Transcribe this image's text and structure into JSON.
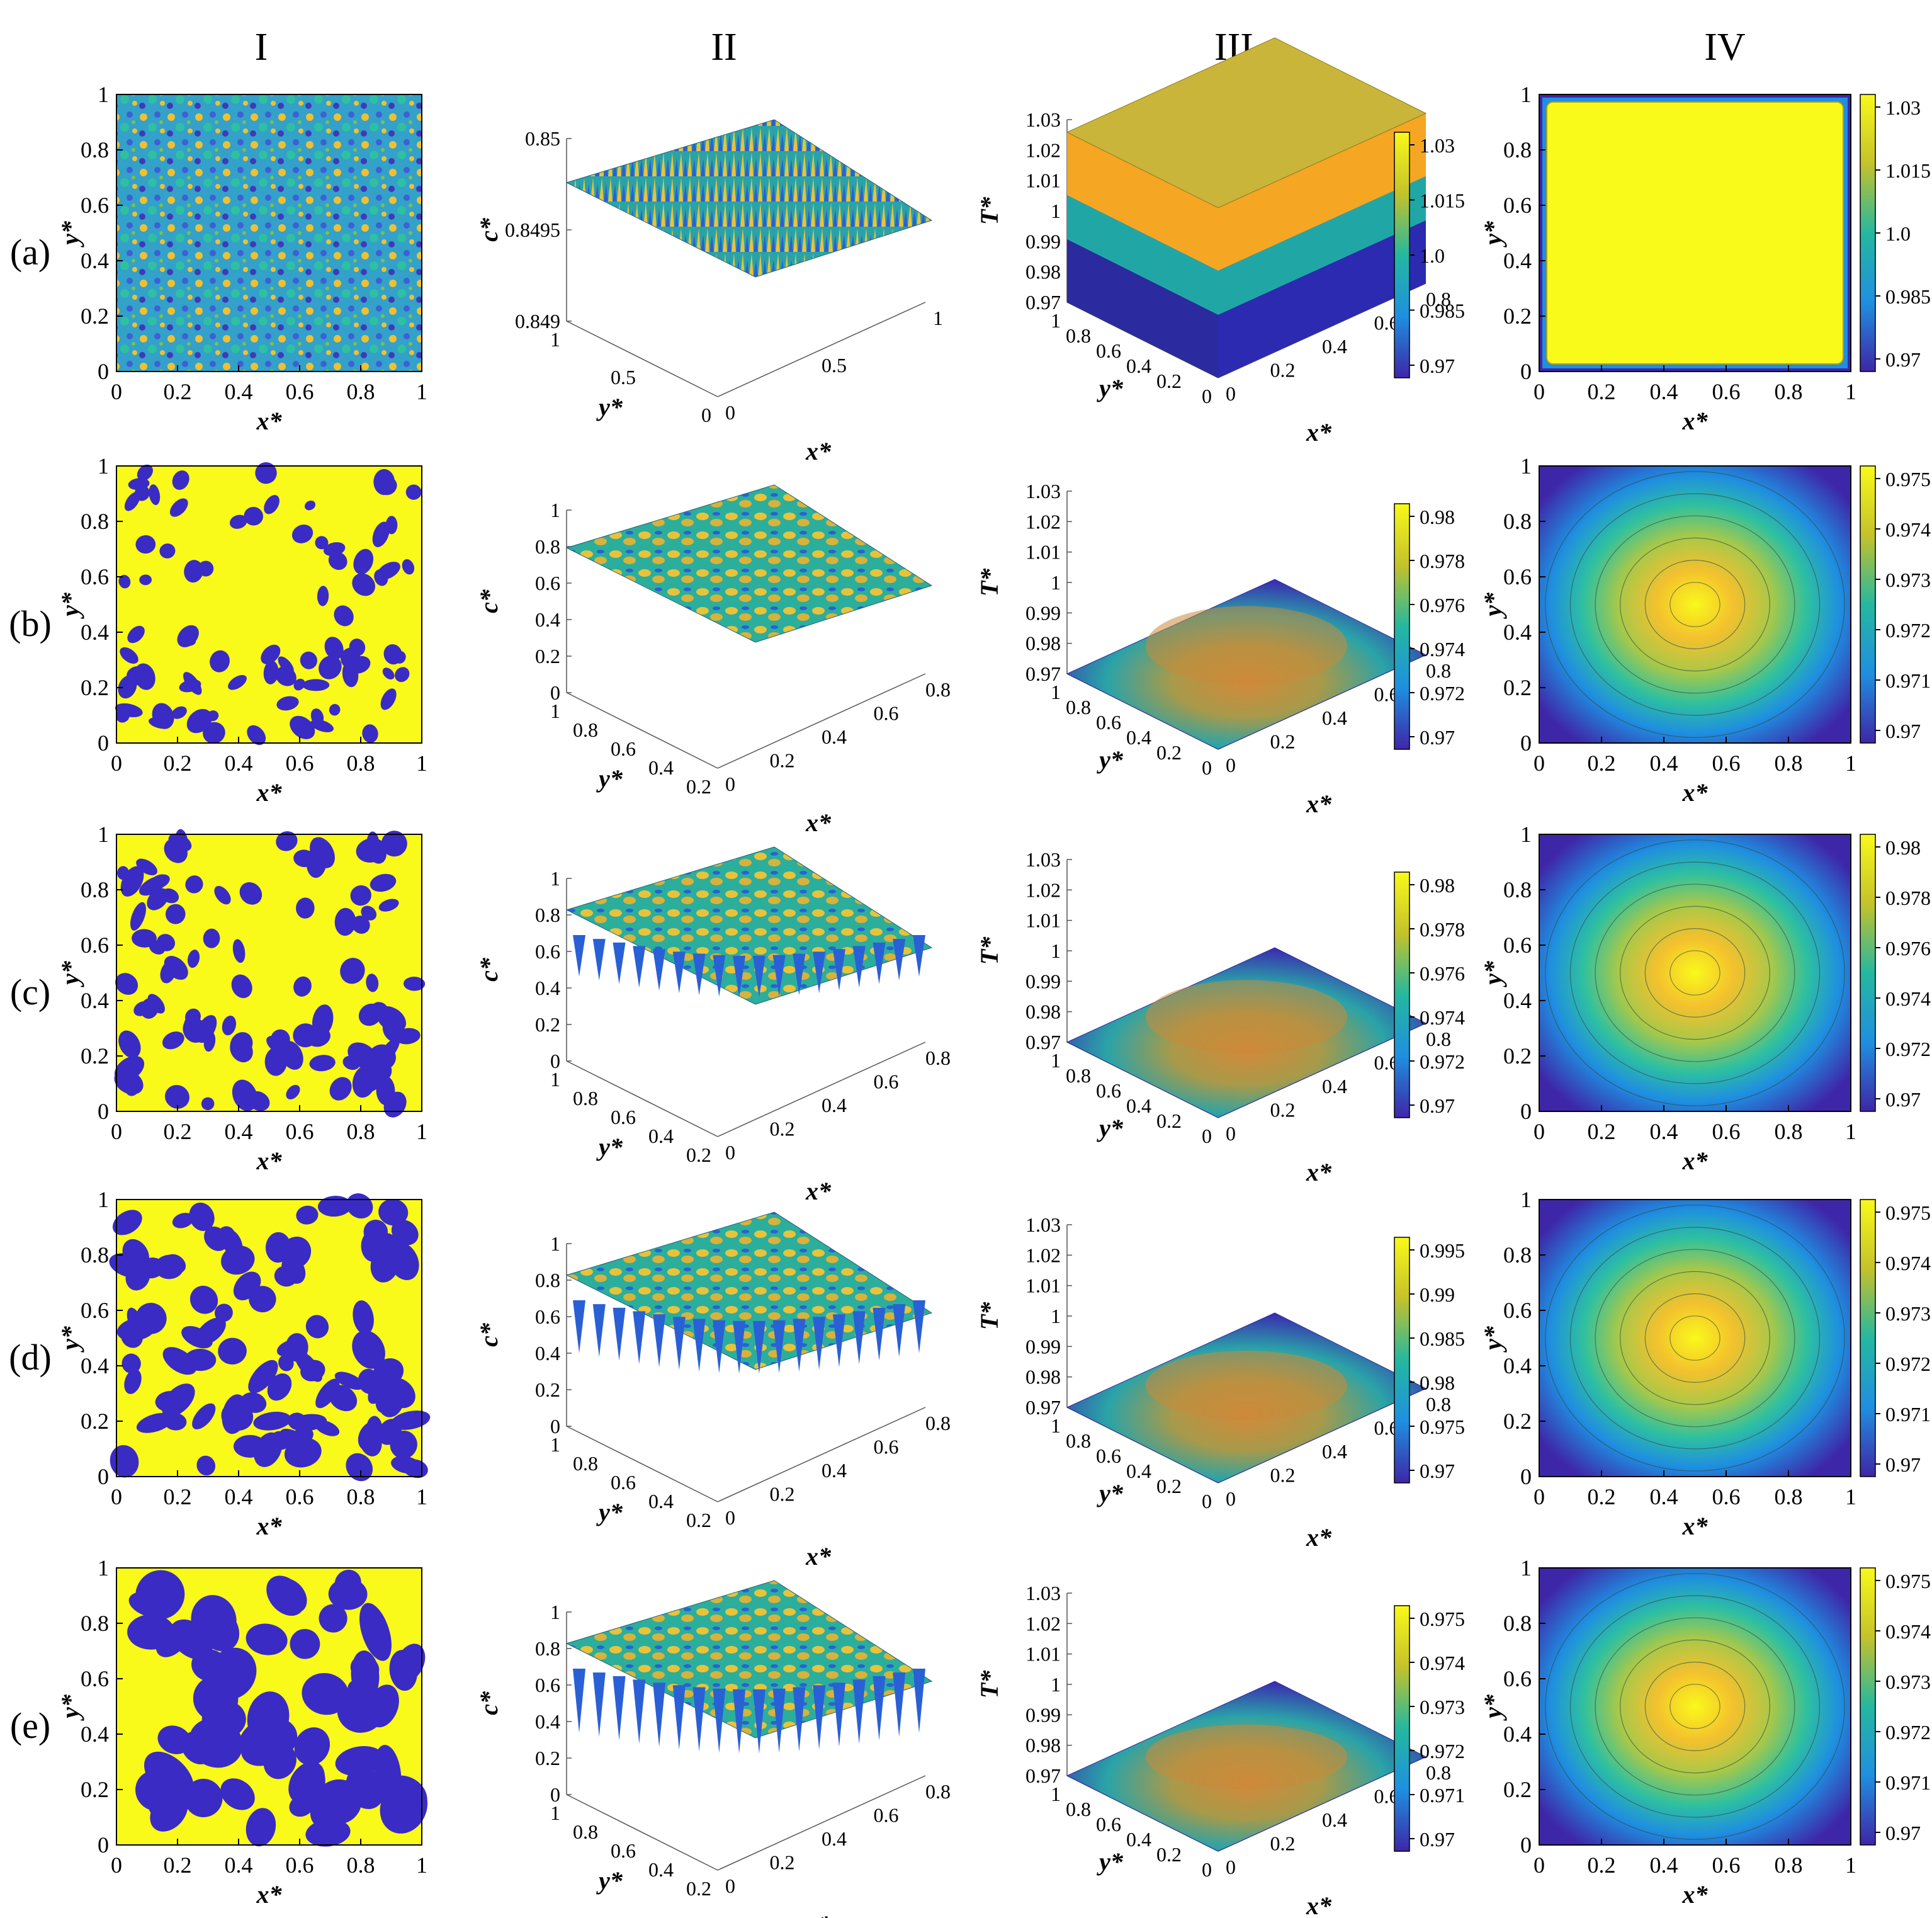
{
  "columns": [
    "I",
    "II",
    "III",
    "IV"
  ],
  "rows": [
    "(a)",
    "(b)",
    "(c)",
    "(d)",
    "(e)"
  ],
  "labels": {
    "x": "x*",
    "y": "y*",
    "c": "c*",
    "T": "T*"
  },
  "colors": {
    "yellow": "#f9f91a",
    "blue": "#3a2bc4",
    "navy": "#2b1f8a",
    "teal": "#21a6a6",
    "green": "#4fbf5a",
    "orange": "#f5a623"
  },
  "chart_data": [
    {
      "panel": "I",
      "type": "heatmap",
      "description_of": "concentration field c* (top view)",
      "xticks": [
        "0",
        "0.2",
        "0.4",
        "0.6",
        "0.8",
        "1"
      ],
      "yticks": [
        "0",
        "0.2",
        "0.4",
        "0.6",
        "0.8",
        "1"
      ],
      "xlabel": "x*",
      "ylabel": "y*",
      "xlim": [
        0,
        1
      ],
      "ylim": [
        0,
        1
      ]
    },
    {
      "panel": "II",
      "type": "surface",
      "zticks": {
        "a": [
          "0.849",
          "0.8495",
          "0.85"
        ],
        "b": [
          "0",
          "0.2",
          "0.4",
          "0.6",
          "0.8",
          "1"
        ],
        "c": [
          "0",
          "0.2",
          "0.4",
          "0.6",
          "0.8",
          "1"
        ],
        "d": [
          "0",
          "0.2",
          "0.4",
          "0.6",
          "0.8",
          "1"
        ],
        "e": [
          "0",
          "0.2",
          "0.4",
          "0.6",
          "0.8",
          "1"
        ]
      },
      "xticks_a": [
        "0",
        "0.5",
        "1"
      ],
      "yticks_a": [
        "0",
        "0.5",
        "1"
      ],
      "xticks": [
        "0",
        "0.2",
        "0.4",
        "0.6",
        "0.8"
      ],
      "yticks": [
        "0.2",
        "0.4",
        "0.6",
        "0.8",
        "1"
      ],
      "xlabel": "x*",
      "ylabel": "y*",
      "zlabel": "c*"
    },
    {
      "panel": "III",
      "type": "surface",
      "zticks": [
        "0.97",
        "0.98",
        "0.99",
        "1",
        "1.01",
        "1.02",
        "1.03"
      ],
      "xticks": [
        "0",
        "0.2",
        "0.4",
        "0.6",
        "0.8"
      ],
      "yticks": [
        "0",
        "0.2",
        "0.4",
        "0.6",
        "0.8",
        "1"
      ],
      "xlabel": "x*",
      "ylabel": "y*",
      "zlabel": "T*",
      "colorbar_ticks": {
        "a": [
          "1.03",
          "1.015",
          "1.0",
          "0.985",
          "0.97"
        ],
        "b": [
          "0.98",
          "0.978",
          "0.976",
          "0.974",
          "0.972",
          "0.97"
        ],
        "c": [
          "0.98",
          "0.978",
          "0.976",
          "0.974",
          "0.972",
          "0.97"
        ],
        "d": [
          "0.995",
          "0.99",
          "0.985",
          "0.98",
          "0.975",
          "0.97"
        ],
        "e": [
          "0.975",
          "0.974",
          "0.973",
          "0.972",
          "0.971",
          "0.97"
        ]
      }
    },
    {
      "panel": "IV",
      "type": "heatmap",
      "description_of": "temperature field T* (top view)",
      "xticks": [
        "0",
        "0.2",
        "0.4",
        "0.6",
        "0.8",
        "1"
      ],
      "yticks": [
        "0",
        "0.2",
        "0.4",
        "0.6",
        "0.8",
        "1"
      ],
      "xlabel": "x*",
      "ylabel": "y*",
      "colorbar_ticks": {
        "a": [
          "1.03",
          "1.015",
          "1.0",
          "0.985",
          "0.97"
        ],
        "b": [
          "0.975",
          "0.974",
          "0.973",
          "0.972",
          "0.971",
          "0.97"
        ],
        "c": [
          "0.98",
          "0.978",
          "0.976",
          "0.974",
          "0.972",
          "0.97"
        ],
        "d": [
          "0.975",
          "0.974",
          "0.973",
          "0.972",
          "0.971",
          "0.97"
        ],
        "e": [
          "0.975",
          "0.974",
          "0.973",
          "0.972",
          "0.971",
          "0.97"
        ]
      }
    }
  ]
}
